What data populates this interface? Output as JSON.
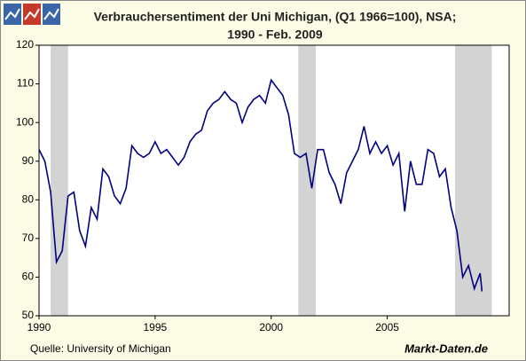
{
  "chart_data": {
    "type": "line",
    "title": "Verbrauchersentiment der Uni Michigan, (Q1 1966=100), NSA;",
    "subtitle": "1990 - Feb. 2009",
    "source": "Quelle: University of Michigan",
    "brand": "Markt-Daten.de",
    "x": [
      1990.0,
      1990.25,
      1990.5,
      1990.75,
      1991.0,
      1991.25,
      1991.5,
      1991.75,
      1992.0,
      1992.25,
      1992.5,
      1992.75,
      1993.0,
      1993.25,
      1993.5,
      1993.75,
      1994.0,
      1994.25,
      1994.5,
      1994.75,
      1995.0,
      1995.25,
      1995.5,
      1995.75,
      1996.0,
      1996.25,
      1996.5,
      1996.75,
      1997.0,
      1997.25,
      1997.5,
      1997.75,
      1998.0,
      1998.25,
      1998.5,
      1998.75,
      1999.0,
      1999.25,
      1999.5,
      1999.75,
      2000.0,
      2000.25,
      2000.5,
      2000.75,
      2001.0,
      2001.25,
      2001.5,
      2001.75,
      2002.0,
      2002.25,
      2002.5,
      2002.75,
      2003.0,
      2003.25,
      2003.5,
      2003.75,
      2004.0,
      2004.25,
      2004.5,
      2004.75,
      2005.0,
      2005.25,
      2005.5,
      2005.75,
      2006.0,
      2006.25,
      2006.5,
      2006.75,
      2007.0,
      2007.25,
      2007.5,
      2007.75,
      2008.0,
      2008.25,
      2008.5,
      2008.75,
      2009.0,
      2009.08
    ],
    "series": [
      {
        "name": "Verbrauchersentiment",
        "color": "#000080",
        "values": [
          93,
          90,
          82,
          63.9,
          66.8,
          81,
          82,
          72,
          68,
          78,
          75,
          88,
          86,
          81,
          79,
          83,
          94,
          92,
          91,
          92,
          95,
          92,
          93,
          91,
          89,
          91,
          95,
          97,
          98,
          103,
          105,
          106,
          108,
          106,
          105,
          100,
          104,
          106,
          107,
          105,
          111,
          109,
          107,
          102,
          92,
          91,
          92,
          83,
          93,
          93,
          87,
          84,
          79,
          87,
          90,
          93,
          99,
          92,
          95,
          92,
          94,
          89,
          92,
          77,
          90,
          84,
          84,
          93,
          92,
          86,
          88,
          78,
          72,
          60,
          63,
          57,
          61,
          56.3
        ]
      }
    ],
    "recessions": [
      [
        1990.5,
        1991.25
      ],
      [
        2001.17,
        2001.92
      ],
      [
        2007.92,
        2009.5
      ]
    ],
    "recession_color": "#d3d3d3",
    "xlim": [
      1990,
      2010.25
    ],
    "xticks": [
      1990,
      1995,
      2000,
      2005
    ],
    "ylim": [
      50,
      120
    ],
    "yticks": [
      50,
      60,
      70,
      80,
      90,
      100,
      110,
      120
    ]
  }
}
